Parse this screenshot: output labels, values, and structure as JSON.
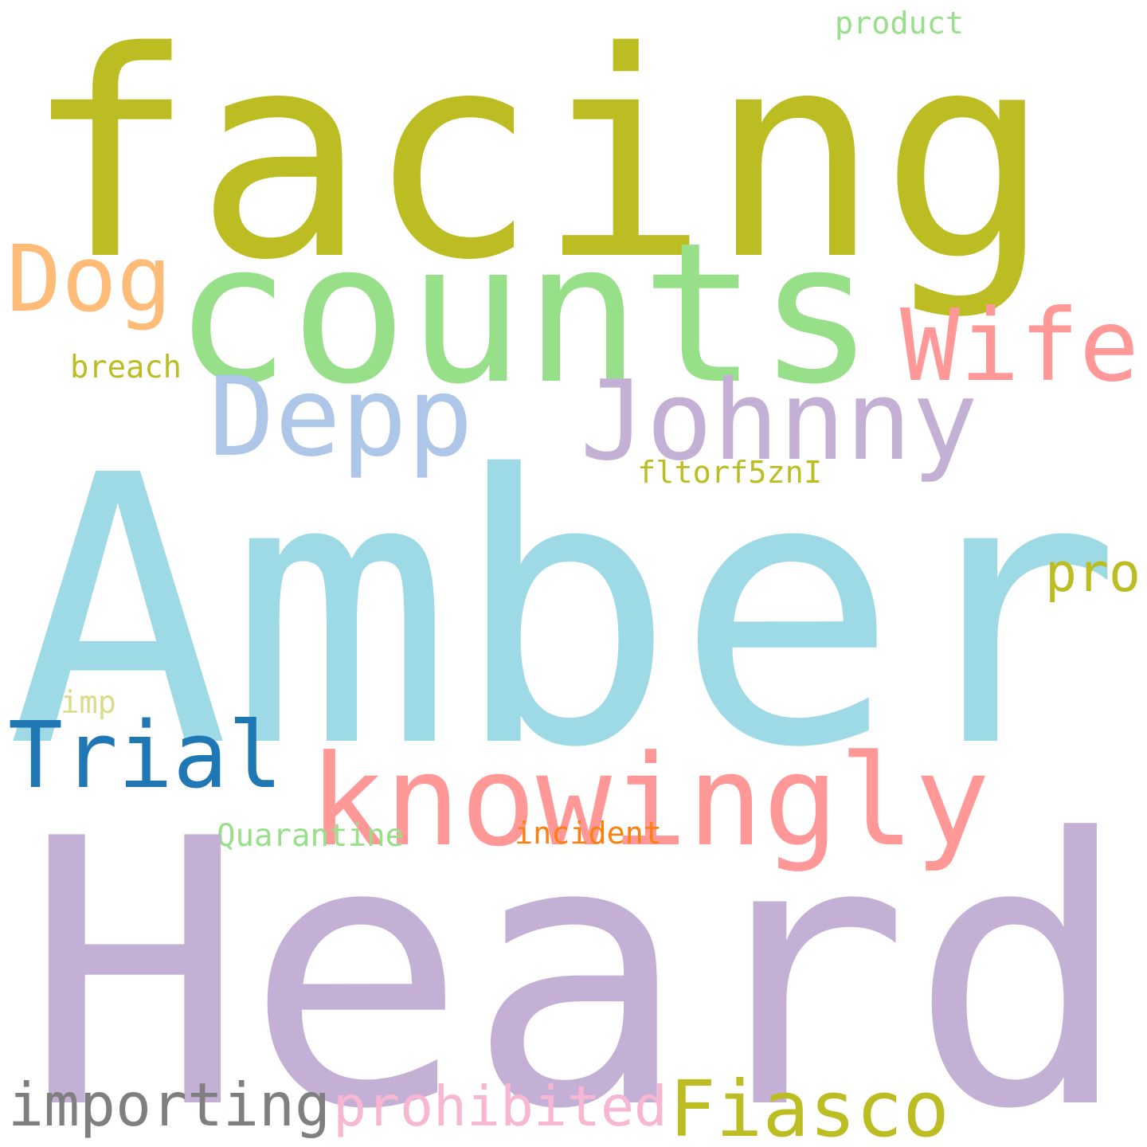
{
  "words": [
    {
      "text": "facing",
      "color": "#bcbd22"
    },
    {
      "text": "product",
      "color": "#98df8a"
    },
    {
      "text": "Dog",
      "color": "#ffbb78"
    },
    {
      "text": "counts",
      "color": "#98df8a"
    },
    {
      "text": "Wife",
      "color": "#ff9896"
    },
    {
      "text": "breach",
      "color": "#bcbd22"
    },
    {
      "text": "Depp",
      "color": "#aec7e8"
    },
    {
      "text": "Johnny",
      "color": "#c5b0d5"
    },
    {
      "text": "fltorf5znI",
      "color": "#bcbd22"
    },
    {
      "text": "Amber",
      "color": "#9edae5"
    },
    {
      "text": "pro",
      "color": "#bcbd22"
    },
    {
      "text": "imp",
      "color": "#dbdb8d"
    },
    {
      "text": "Trial",
      "color": "#1f77b4"
    },
    {
      "text": "knowingly",
      "color": "#ff9896"
    },
    {
      "text": "Quarantine",
      "color": "#98df8a"
    },
    {
      "text": "incident",
      "color": "#ff7f0e"
    },
    {
      "text": "Heard",
      "color": "#c5b0d5"
    },
    {
      "text": "importing",
      "color": "#7f7f7f"
    },
    {
      "text": "prohibited",
      "color": "#f7b6d2"
    },
    {
      "text": "Fiasco",
      "color": "#bcbd22"
    }
  ]
}
